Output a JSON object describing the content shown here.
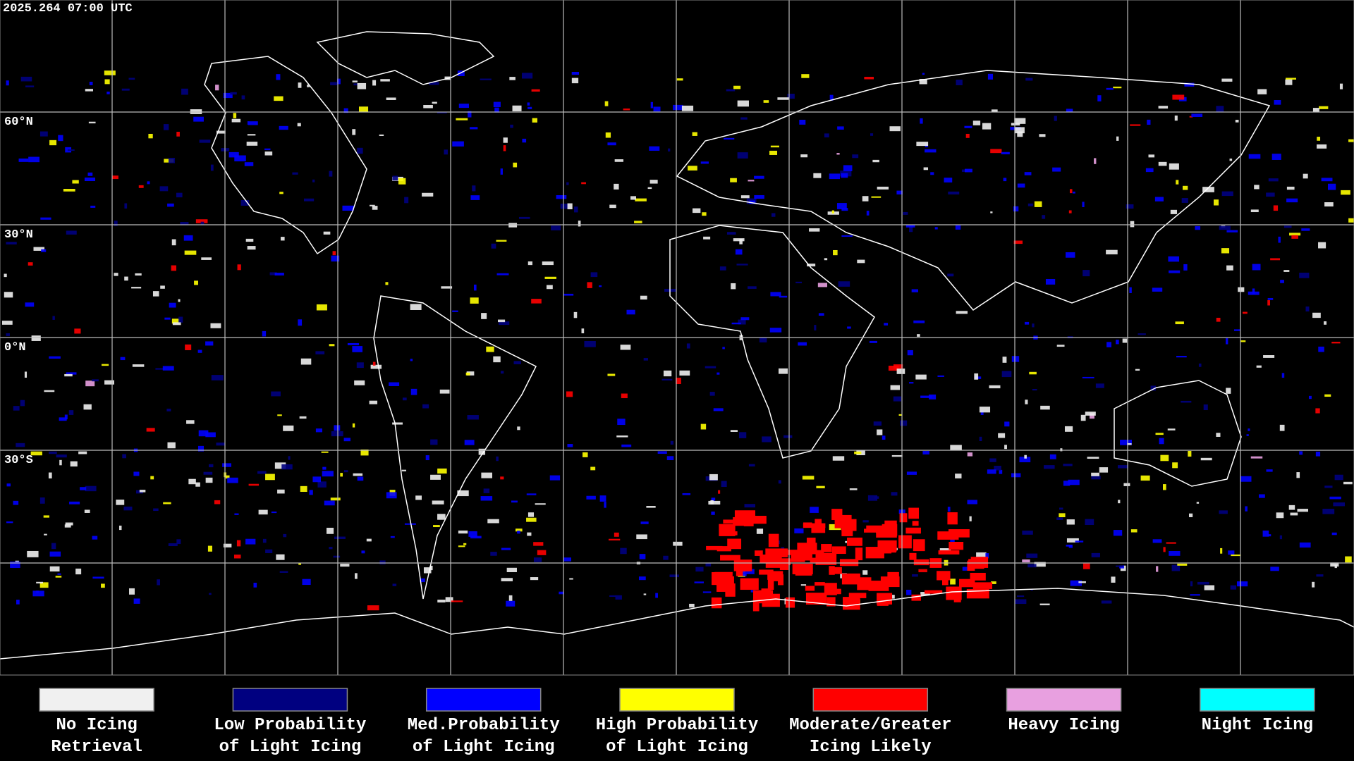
{
  "header": {
    "timestamp": "2025.264 07:00 UTC"
  },
  "map": {
    "latitude_labels": [
      "60°N",
      "30°N",
      "0°N",
      "30°S"
    ]
  },
  "legend": {
    "items": [
      {
        "color": "#f0f0f0",
        "label_lines": [
          "No Icing",
          "Retrieval"
        ]
      },
      {
        "color": "#000080",
        "label_lines": [
          "Low Probability",
          "of Light Icing"
        ]
      },
      {
        "color": "#0000ff",
        "label_lines": [
          "Med.Probability",
          "of Light Icing"
        ]
      },
      {
        "color": "#ffff00",
        "label_lines": [
          "High Probability",
          "of Light Icing"
        ]
      },
      {
        "color": "#ff0000",
        "label_lines": [
          "Moderate/Greater",
          "Icing Likely"
        ]
      },
      {
        "color": "#e8a0e0",
        "label_lines": [
          "Heavy Icing"
        ]
      },
      {
        "color": "#00ffff",
        "label_lines": [
          "Night Icing"
        ]
      }
    ]
  }
}
